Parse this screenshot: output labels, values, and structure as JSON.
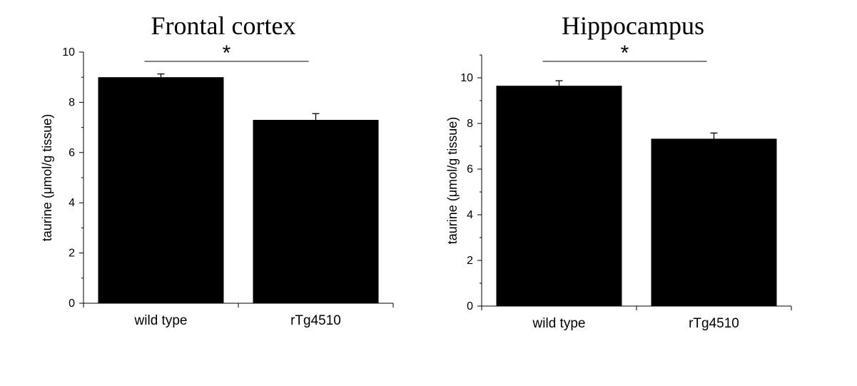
{
  "chart_data": [
    {
      "type": "bar",
      "title": "Frontal cortex",
      "ylabel": "taurine (μmol/g tissue)",
      "xlabel": "",
      "categories": [
        "wild type",
        "rTg4510"
      ],
      "values": [
        9.0,
        7.3
      ],
      "errors": [
        0.13,
        0.25
      ],
      "ylim": [
        0,
        10
      ],
      "yticks": [
        0,
        2,
        4,
        6,
        8,
        10
      ],
      "significance": {
        "between": [
          0,
          1
        ],
        "label": "*"
      },
      "bar_color": "#000000",
      "grid": false
    },
    {
      "type": "bar",
      "title": "Hippocampus",
      "ylabel": "taurine (μmol/g tissue)",
      "xlabel": "",
      "categories": [
        "wild type",
        "rTg4510"
      ],
      "values": [
        9.65,
        7.33
      ],
      "errors": [
        0.22,
        0.25
      ],
      "ylim": [
        0,
        11
      ],
      "yticks": [
        0,
        2,
        4,
        6,
        8,
        10
      ],
      "significance": {
        "between": [
          0,
          1
        ],
        "label": "*"
      },
      "bar_color": "#000000",
      "grid": false
    }
  ]
}
